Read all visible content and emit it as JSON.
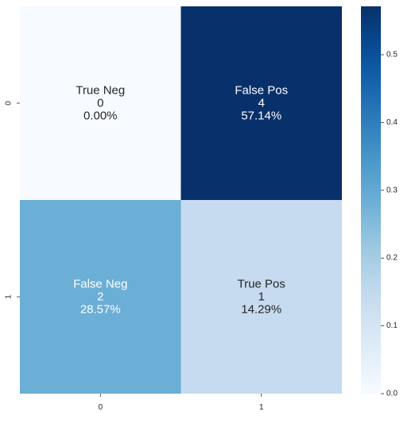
{
  "chart_data": {
    "type": "heatmap",
    "x_tick_labels": [
      "0",
      "1"
    ],
    "y_tick_labels": [
      "0",
      "1"
    ],
    "cells": [
      [
        {
          "group": "True Neg",
          "count": "0",
          "percent": "0.00%",
          "value": 0.0
        },
        {
          "group": "False Pos",
          "count": "4",
          "percent": "57.14%",
          "value": 0.5714
        }
      ],
      [
        {
          "group": "False Neg",
          "count": "2",
          "percent": "28.57%",
          "value": 0.2857
        },
        {
          "group": "True Pos",
          "count": "1",
          "percent": "14.29%",
          "value": 0.1429
        }
      ]
    ],
    "colorbar": {
      "min": 0.0,
      "max": 0.5714,
      "ticks": [
        0.0,
        0.1,
        0.2,
        0.3,
        0.4,
        0.5
      ],
      "tick_labels": [
        "0.0",
        "0.1",
        "0.2",
        "0.3",
        "0.4",
        "0.5"
      ],
      "colormap": "Blues"
    },
    "colors": {
      "text_light": "#ffffff",
      "text_dark": "#262626",
      "axis": "#262626"
    }
  }
}
